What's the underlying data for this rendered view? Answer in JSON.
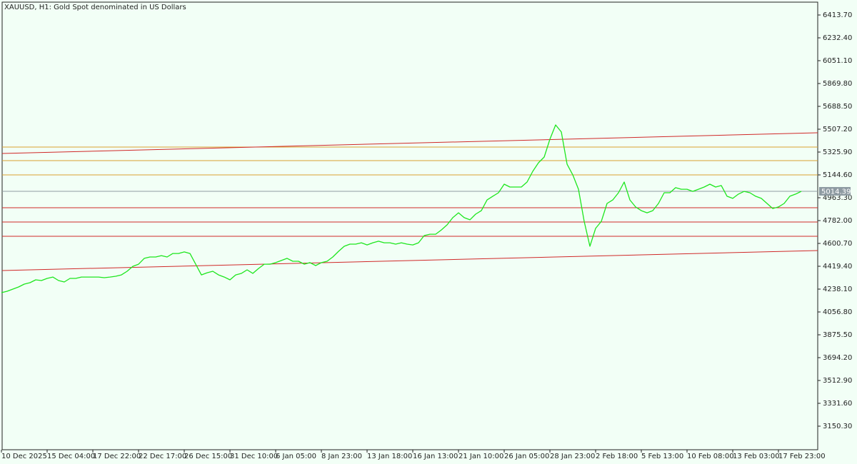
{
  "chart_data": {
    "type": "line",
    "title": "XAUUSD, H1:  Gold Spot denominated in US Dollars",
    "categories": [
      "10 Dec 2025",
      null,
      null,
      null,
      null,
      null,
      null,
      null,
      "15 Dec 04:00",
      null,
      null,
      null,
      null,
      null,
      null,
      null,
      "17 Dec 22:00",
      null,
      null,
      null,
      null,
      null,
      null,
      null,
      "22 Dec 17:00",
      null,
      null,
      null,
      null,
      null,
      null,
      null,
      "26 Dec 15:00",
      null,
      null,
      null,
      null,
      null,
      null,
      null,
      "31 Dec 10:00",
      null,
      null,
      null,
      null,
      null,
      null,
      null,
      "6 Jan 05:00",
      null,
      null,
      null,
      null,
      null,
      null,
      null,
      "8 Jan 23:00",
      null,
      null,
      null,
      null,
      null,
      null,
      null,
      "13 Jan 18:00",
      null,
      null,
      null,
      null,
      null,
      null,
      null,
      "16 Jan 13:00",
      null,
      null,
      null,
      null,
      null,
      null,
      null,
      "21 Jan 10:00",
      null,
      null,
      null,
      null,
      null,
      null,
      null,
      "26 Jan 05:00",
      null,
      null,
      null,
      null,
      null,
      null,
      null,
      "28 Jan 23:00",
      null,
      null,
      null,
      null,
      null,
      null,
      null,
      "2 Feb 18:00",
      null,
      null,
      null,
      null,
      null,
      null,
      null,
      "5 Feb 13:00",
      null,
      null,
      null,
      null,
      null,
      null,
      null,
      "10 Feb 08:00",
      null,
      null,
      null,
      null,
      null,
      null,
      null,
      "13 Feb 03:00",
      null,
      null,
      null,
      null,
      null,
      null,
      null,
      "17 Feb 23:00",
      null,
      null,
      null,
      null
    ],
    "series": [
      {
        "color": "#1ee61e",
        "values": [
          4210,
          4221,
          4238,
          4255,
          4278,
          4289,
          4312,
          4306,
          4323,
          4334,
          4306,
          4295,
          4323,
          4323,
          4334,
          4334,
          4334,
          4334,
          4329,
          4334,
          4340,
          4351,
          4380,
          4419,
          4436,
          4482,
          4493,
          4493,
          4504,
          4493,
          4521,
          4521,
          4533,
          4521,
          4436,
          4351,
          4368,
          4380,
          4351,
          4334,
          4312,
          4351,
          4363,
          4391,
          4363,
          4402,
          4436,
          4436,
          4448,
          4465,
          4482,
          4459,
          4459,
          4436,
          4448,
          4425,
          4448,
          4459,
          4493,
          4538,
          4578,
          4595,
          4595,
          4606,
          4589,
          4606,
          4618,
          4606,
          4606,
          4595,
          4606,
          4595,
          4589,
          4606,
          4663,
          4674,
          4674,
          4708,
          4748,
          4805,
          4844,
          4805,
          4788,
          4833,
          4861,
          4946,
          4975,
          5003,
          5071,
          5048,
          5048,
          5048,
          5088,
          5173,
          5241,
          5286,
          5428,
          5541,
          5485,
          5230,
          5145,
          5031,
          4776,
          4578,
          4720,
          4776,
          4918,
          4946,
          5003,
          5088,
          4946,
          4890,
          4861,
          4844,
          4861,
          4918,
          5003,
          5003,
          5043,
          5031,
          5031,
          5014,
          5031,
          5048,
          5071,
          5048,
          5060,
          4975,
          4958,
          4992,
          5014,
          5003,
          4975,
          4958,
          4918,
          4878,
          4890,
          4918,
          4975,
          4992,
          5014.39
        ]
      }
    ],
    "last_price": 5014.39,
    "last_price_color": "#8e9ba2",
    "ylim": [
      2963.3,
      6515.7
    ],
    "yticks": [
      {
        "value": 6413.7,
        "label": "6413.70"
      },
      {
        "value": 6232.4,
        "label": "6232.40"
      },
      {
        "value": 6051.1,
        "label": "6051.10"
      },
      {
        "value": 5869.8,
        "label": "5869.80"
      },
      {
        "value": 5688.5,
        "label": "5688.50"
      },
      {
        "value": 5507.2,
        "label": "5507.20"
      },
      {
        "value": 5325.9,
        "label": "5325.90"
      },
      {
        "value": 5144.6,
        "label": "5144.60"
      },
      {
        "value": 4963.3,
        "label": "4963.30"
      },
      {
        "value": 4782,
        "label": "4782.00"
      },
      {
        "value": 4600.7,
        "label": "4600.70"
      },
      {
        "value": 4419.4,
        "label": "4419.40"
      },
      {
        "value": 4238.1,
        "label": "4238.10"
      },
      {
        "value": 4056.8,
        "label": "4056.80"
      },
      {
        "value": 3875.5,
        "label": "3875.50"
      },
      {
        "value": 3694.2,
        "label": "3694.20"
      },
      {
        "value": 3512.9,
        "label": "3512.90"
      },
      {
        "value": 3331.6,
        "label": "3331.60"
      },
      {
        "value": 3150.3,
        "label": "3150.30"
      }
    ],
    "levels": [
      {
        "value": 5365.6,
        "color": "#d9a030"
      },
      {
        "value": 5257.9,
        "color": "#d9a030"
      },
      {
        "value": 5144.6,
        "color": "#d9a030"
      },
      {
        "value": 4884.0,
        "color": "#d02828"
      },
      {
        "value": 4770.7,
        "color": "#d02828"
      },
      {
        "value": 4657.4,
        "color": "#d02828"
      }
    ],
    "trendlines": [
      {
        "values": [
          5314.6,
          5478.9
        ],
        "color": "#d02828"
      },
      {
        "values": [
          4385.4,
          4544.1
        ],
        "color": "#d02828"
      }
    ],
    "grid": false
  }
}
